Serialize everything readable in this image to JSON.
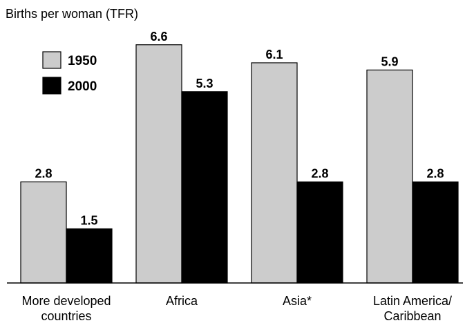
{
  "chart_data": {
    "type": "bar",
    "ylabel": "Births per woman (TFR)",
    "categories": [
      [
        "More developed",
        "countries"
      ],
      [
        "Africa"
      ],
      [
        "Asia*"
      ],
      [
        "Latin America/",
        "Caribbean"
      ]
    ],
    "series": [
      {
        "name": "1950",
        "color": "#cccccc",
        "values": [
          2.8,
          6.6,
          6.1,
          5.9
        ],
        "labels": [
          "2.8",
          "6.6",
          "6.1",
          "5.9"
        ]
      },
      {
        "name": "2000",
        "color": "#000000",
        "values": [
          1.5,
          5.3,
          2.8,
          2.8
        ],
        "labels": [
          "1.5",
          "5.3",
          "2.8",
          "2.8"
        ]
      }
    ],
    "ylim": [
      0,
      7
    ],
    "grid": false,
    "legend": "top-left"
  }
}
